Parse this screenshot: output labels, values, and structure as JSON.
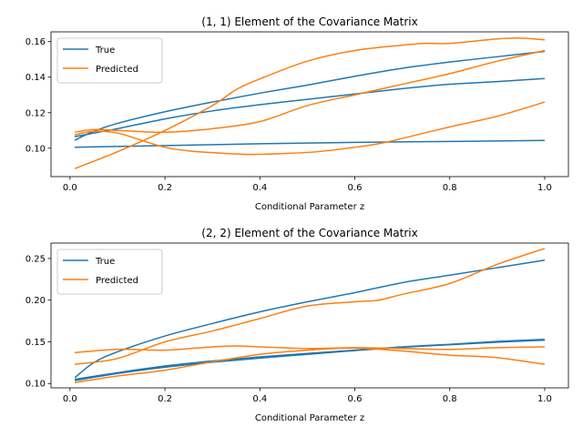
{
  "chart_data": [
    {
      "type": "line",
      "title": "(1, 1) Element of the Covariance Matrix",
      "xlabel": "Conditional Parameter z",
      "ylabel": "",
      "xlim": [
        -0.04,
        1.05
      ],
      "ylim": [
        0.084,
        0.1655
      ],
      "xticks": [
        "0.0",
        "0.2",
        "0.4",
        "0.6",
        "0.8",
        "1.0"
      ],
      "yticks": [
        "0.10",
        "0.12",
        "0.14",
        "0.16"
      ],
      "grid": false,
      "legend_position": "top-left",
      "legend": [
        "True",
        "Predicted"
      ],
      "colors": {
        "True": "#1f77b4",
        "Predicted": "#ff7f0e"
      },
      "series": [
        {
          "name": "True",
          "group": "True",
          "x": [
            0.01,
            0.05,
            0.1,
            0.2,
            0.3,
            0.4,
            0.5,
            0.6,
            0.7,
            0.8,
            0.9,
            1.0
          ],
          "y": [
            0.1045,
            0.1095,
            0.114,
            0.1205,
            0.126,
            0.131,
            0.1355,
            0.1405,
            0.145,
            0.1485,
            0.1515,
            0.1545
          ]
        },
        {
          "x": [
            0.01,
            0.05,
            0.1,
            0.2,
            0.3,
            0.4,
            0.5,
            0.6,
            0.7,
            0.8,
            0.9,
            1.0
          ],
          "y": [
            0.1065,
            0.1085,
            0.111,
            0.1165,
            0.121,
            0.1245,
            0.1275,
            0.1305,
            0.1335,
            0.136,
            0.1375,
            0.1392
          ]
        },
        {
          "x": [
            0.01,
            0.1,
            0.2,
            0.4,
            0.6,
            0.8,
            1.0
          ],
          "y": [
            0.1005,
            0.101,
            0.1015,
            0.1025,
            0.1033,
            0.1038,
            0.1044
          ]
        },
        {
          "name": "Predicted",
          "group": "Predicted",
          "x": [
            0.01,
            0.1,
            0.2,
            0.3,
            0.35,
            0.4,
            0.5,
            0.6,
            0.7,
            0.75,
            0.8,
            0.9,
            0.95,
            1.0
          ],
          "y": [
            0.0885,
            0.098,
            0.11,
            0.124,
            0.133,
            0.139,
            0.149,
            0.155,
            0.158,
            0.159,
            0.159,
            0.1615,
            0.162,
            0.161
          ]
        },
        {
          "x": [
            0.01,
            0.05,
            0.1,
            0.2,
            0.3,
            0.4,
            0.5,
            0.6,
            0.7,
            0.8,
            0.9,
            1.0
          ],
          "y": [
            0.109,
            0.1105,
            0.11,
            0.109,
            0.111,
            0.115,
            0.124,
            0.13,
            0.136,
            0.142,
            0.149,
            0.155
          ]
        },
        {
          "x": [
            0.01,
            0.05,
            0.1,
            0.15,
            0.2,
            0.25,
            0.3,
            0.38,
            0.45,
            0.52,
            0.6,
            0.65,
            0.7,
            0.8,
            0.9,
            1.0
          ],
          "y": [
            0.1075,
            0.1095,
            0.1085,
            0.1045,
            0.1005,
            0.0985,
            0.0975,
            0.0965,
            0.097,
            0.098,
            0.1005,
            0.1025,
            0.1055,
            0.112,
            0.118,
            0.126
          ]
        }
      ]
    },
    {
      "type": "line",
      "title": "(2, 2) Element of the Covariance Matrix",
      "xlabel": "Conditional Parameter z",
      "ylabel": "",
      "xlim": [
        -0.04,
        1.05
      ],
      "ylim": [
        0.0948,
        0.2685
      ],
      "xticks": [
        "0.0",
        "0.2",
        "0.4",
        "0.6",
        "0.8",
        "1.0"
      ],
      "yticks": [
        "0.10",
        "0.15",
        "0.20",
        "0.25"
      ],
      "grid": false,
      "legend_position": "top-left",
      "legend": [
        "True",
        "Predicted"
      ],
      "colors": {
        "True": "#1f77b4",
        "Predicted": "#ff7f0e"
      },
      "series": [
        {
          "name": "True",
          "group": "True",
          "x": [
            0.01,
            0.05,
            0.1,
            0.2,
            0.3,
            0.4,
            0.5,
            0.6,
            0.7,
            0.8,
            0.9,
            1.0
          ],
          "y": [
            0.107,
            0.125,
            0.138,
            0.157,
            0.172,
            0.186,
            0.198,
            0.209,
            0.221,
            0.23,
            0.239,
            0.248
          ]
        },
        {
          "x": [
            0.01,
            0.1,
            0.2,
            0.3,
            0.4,
            0.5,
            0.6,
            0.7,
            0.8,
            0.9,
            1.0
          ],
          "y": [
            0.105,
            0.113,
            0.121,
            0.127,
            0.132,
            0.136,
            0.14,
            0.144,
            0.147,
            0.1505,
            0.153
          ]
        },
        {
          "x": [
            0.01,
            0.1,
            0.2,
            0.3,
            0.4,
            0.5,
            0.6,
            0.7,
            0.8,
            0.9,
            1.0
          ],
          "y": [
            0.1035,
            0.112,
            0.1195,
            0.1255,
            0.1305,
            0.135,
            0.1395,
            0.1435,
            0.1465,
            0.1495,
            0.152
          ]
        },
        {
          "name": "Predicted",
          "group": "Predicted",
          "x": [
            0.01,
            0.1,
            0.2,
            0.3,
            0.4,
            0.5,
            0.6,
            0.65,
            0.7,
            0.8,
            0.9,
            1.0
          ],
          "y": [
            0.123,
            0.13,
            0.15,
            0.163,
            0.178,
            0.193,
            0.198,
            0.2,
            0.207,
            0.22,
            0.243,
            0.262
          ]
        },
        {
          "x": [
            0.01,
            0.1,
            0.2,
            0.3,
            0.35,
            0.4,
            0.5,
            0.6,
            0.7,
            0.8,
            0.9,
            1.0
          ],
          "y": [
            0.137,
            0.141,
            0.14,
            0.144,
            0.145,
            0.144,
            0.142,
            0.143,
            0.142,
            0.141,
            0.143,
            0.144
          ]
        },
        {
          "x": [
            0.01,
            0.1,
            0.2,
            0.3,
            0.4,
            0.5,
            0.6,
            0.7,
            0.8,
            0.9,
            1.0
          ],
          "y": [
            0.101,
            0.109,
            0.116,
            0.126,
            0.135,
            0.14,
            0.1425,
            0.139,
            0.134,
            0.131,
            0.123
          ]
        }
      ]
    }
  ]
}
